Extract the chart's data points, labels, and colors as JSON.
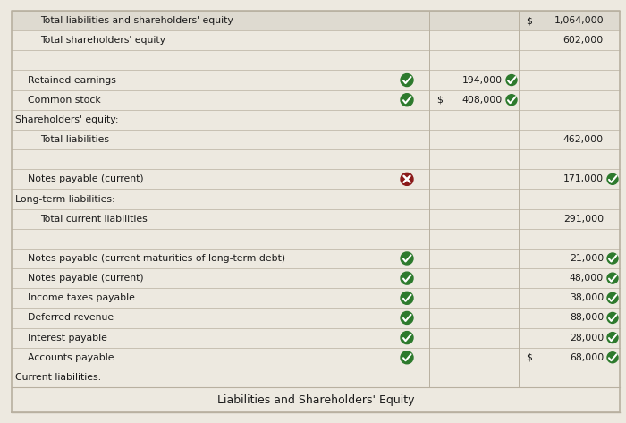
{
  "title": "Liabilities and Shareholders' Equity",
  "background_color": "#ede9e0",
  "table_bg": "#f0ede4",
  "rows": [
    {
      "label": "Current liabilities:",
      "indent": 0,
      "icon": null,
      "col2": "",
      "col2_dollar": false,
      "col2_check": false,
      "col3": "",
      "col3_dollar": false,
      "col3_check": false,
      "section_header": true,
      "spacer": false,
      "total_row": false
    },
    {
      "label": "Accounts payable",
      "indent": 1,
      "icon": "green_check",
      "col2": "",
      "col2_dollar": false,
      "col2_check": false,
      "col3": "68,000",
      "col3_dollar": true,
      "col3_check": true,
      "section_header": false,
      "spacer": false,
      "total_row": false
    },
    {
      "label": "Interest payable",
      "indent": 1,
      "icon": "green_check",
      "col2": "",
      "col2_dollar": false,
      "col2_check": false,
      "col3": "28,000",
      "col3_dollar": false,
      "col3_check": true,
      "section_header": false,
      "spacer": false,
      "total_row": false
    },
    {
      "label": "Deferred revenue",
      "indent": 1,
      "icon": "green_check",
      "col2": "",
      "col2_dollar": false,
      "col2_check": false,
      "col3": "88,000",
      "col3_dollar": false,
      "col3_check": true,
      "section_header": false,
      "spacer": false,
      "total_row": false
    },
    {
      "label": "Income taxes payable",
      "indent": 1,
      "icon": "green_check",
      "col2": "",
      "col2_dollar": false,
      "col2_check": false,
      "col3": "38,000",
      "col3_dollar": false,
      "col3_check": true,
      "section_header": false,
      "spacer": false,
      "total_row": false
    },
    {
      "label": "Notes payable (current)",
      "indent": 1,
      "icon": "green_check",
      "col2": "",
      "col2_dollar": false,
      "col2_check": false,
      "col3": "48,000",
      "col3_dollar": false,
      "col3_check": true,
      "section_header": false,
      "spacer": false,
      "total_row": false
    },
    {
      "label": "Notes payable (current maturities of long-term debt)",
      "indent": 1,
      "icon": "green_check",
      "col2": "",
      "col2_dollar": false,
      "col2_check": false,
      "col3": "21,000",
      "col3_dollar": false,
      "col3_check": true,
      "section_header": false,
      "spacer": false,
      "total_row": false
    },
    {
      "label": "",
      "indent": 0,
      "icon": null,
      "col2": "",
      "col2_dollar": false,
      "col2_check": false,
      "col3": "",
      "col3_dollar": false,
      "col3_check": false,
      "section_header": false,
      "spacer": true,
      "total_row": false
    },
    {
      "label": "Total current liabilities",
      "indent": 2,
      "icon": null,
      "col2": "",
      "col2_dollar": false,
      "col2_check": false,
      "col3": "291,000",
      "col3_dollar": false,
      "col3_check": false,
      "section_header": false,
      "spacer": false,
      "total_row": false
    },
    {
      "label": "Long-term liabilities:",
      "indent": 0,
      "icon": null,
      "col2": "",
      "col2_dollar": false,
      "col2_check": false,
      "col3": "",
      "col3_dollar": false,
      "col3_check": false,
      "section_header": true,
      "spacer": false,
      "total_row": false
    },
    {
      "label": "Notes payable (current)",
      "indent": 1,
      "icon": "red_x",
      "col2": "",
      "col2_dollar": false,
      "col2_check": false,
      "col3": "171,000",
      "col3_dollar": false,
      "col3_check": true,
      "section_header": false,
      "spacer": false,
      "total_row": false
    },
    {
      "label": "",
      "indent": 0,
      "icon": null,
      "col2": "",
      "col2_dollar": false,
      "col2_check": false,
      "col3": "",
      "col3_dollar": false,
      "col3_check": false,
      "section_header": false,
      "spacer": true,
      "total_row": false
    },
    {
      "label": "Total liabilities",
      "indent": 2,
      "icon": null,
      "col2": "",
      "col2_dollar": false,
      "col2_check": false,
      "col3": "462,000",
      "col3_dollar": false,
      "col3_check": false,
      "section_header": false,
      "spacer": false,
      "total_row": false
    },
    {
      "label": "Shareholders' equity:",
      "indent": 0,
      "icon": null,
      "col2": "",
      "col2_dollar": false,
      "col2_check": false,
      "col3": "",
      "col3_dollar": false,
      "col3_check": false,
      "section_header": true,
      "spacer": false,
      "total_row": false
    },
    {
      "label": "Common stock",
      "indent": 1,
      "icon": "green_check",
      "col2": "408,000",
      "col2_dollar": true,
      "col2_check": true,
      "col3": "",
      "col3_dollar": false,
      "col3_check": false,
      "section_header": false,
      "spacer": false,
      "total_row": false
    },
    {
      "label": "Retained earnings",
      "indent": 1,
      "icon": "green_check",
      "col2": "194,000",
      "col2_dollar": false,
      "col2_check": true,
      "col3": "",
      "col3_dollar": false,
      "col3_check": false,
      "section_header": false,
      "spacer": false,
      "total_row": false
    },
    {
      "label": "",
      "indent": 0,
      "icon": null,
      "col2": "",
      "col2_dollar": false,
      "col2_check": false,
      "col3": "",
      "col3_dollar": false,
      "col3_check": false,
      "section_header": false,
      "spacer": true,
      "total_row": false
    },
    {
      "label": "Total shareholders' equity",
      "indent": 2,
      "icon": null,
      "col2": "",
      "col2_dollar": false,
      "col2_check": false,
      "col3": "602,000",
      "col3_dollar": false,
      "col3_check": false,
      "section_header": false,
      "spacer": false,
      "total_row": false
    },
    {
      "label": "Total liabilities and shareholders' equity",
      "indent": 2,
      "icon": null,
      "col2": "",
      "col2_dollar": false,
      "col2_check": false,
      "col3": "1,064,000",
      "col3_dollar": true,
      "col3_check": false,
      "section_header": false,
      "spacer": false,
      "total_row": true
    }
  ],
  "line_color": "#b8b0a0",
  "text_color": "#1a1a1a",
  "green_color": "#2d7a2d",
  "red_color": "#8b1a1a"
}
